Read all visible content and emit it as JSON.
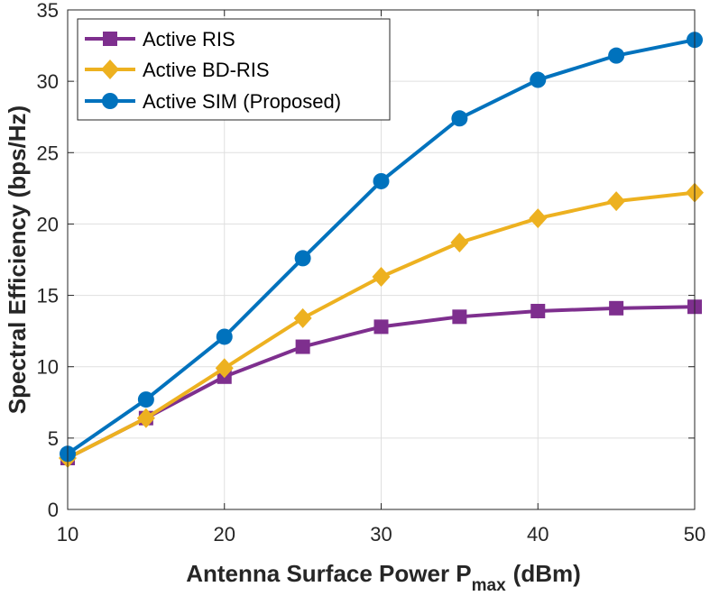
{
  "chart_data": {
    "type": "line",
    "xlabel_main": "Antenna Surface Power P",
    "xlabel_sub": "max",
    "xlabel_unit": "(dBm)",
    "ylabel": "Spectral Efficiency (bps/Hz)",
    "xlim": [
      10,
      50
    ],
    "ylim": [
      0,
      35
    ],
    "xticks": [
      10,
      20,
      30,
      40,
      50
    ],
    "yticks": [
      0,
      5,
      10,
      15,
      20,
      25,
      30,
      35
    ],
    "grid": true,
    "legend_position": "top-left",
    "x": [
      10,
      15,
      20,
      25,
      30,
      35,
      40,
      45,
      50
    ],
    "series": [
      {
        "name": "Active RIS",
        "marker": "square",
        "color": "#7E2F8E",
        "values": [
          3.6,
          6.4,
          9.3,
          11.4,
          12.8,
          13.5,
          13.9,
          14.1,
          14.2
        ]
      },
      {
        "name": "Active BD-RIS",
        "marker": "diamond",
        "color": "#EDB120",
        "values": [
          3.6,
          6.4,
          9.9,
          13.4,
          16.3,
          18.7,
          20.4,
          21.6,
          22.2
        ]
      },
      {
        "name": "Active SIM (Proposed)",
        "marker": "circle",
        "color": "#0072BD",
        "values": [
          3.9,
          7.7,
          12.1,
          17.6,
          23.0,
          27.4,
          30.1,
          31.8,
          32.9
        ]
      }
    ]
  }
}
